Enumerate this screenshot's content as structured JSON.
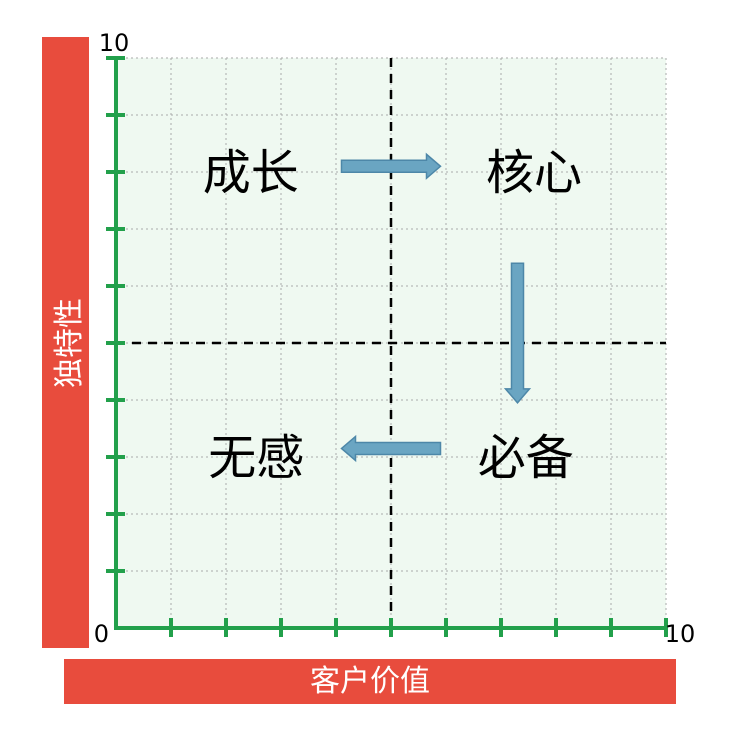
{
  "y_axis_label": "独特性",
  "x_axis_label": "客户价值",
  "colors": {
    "axis": "#22a04b",
    "label_bar": "#e84c3d",
    "plot_bg": "#eff9f1",
    "arrow_fill": "#6aa5c2",
    "arrow_stroke": "#4d87a8"
  },
  "axes": {
    "x_range": [
      0,
      10
    ],
    "y_range": [
      0,
      10
    ],
    "grid": true,
    "divider": [
      5,
      5
    ],
    "ticks": {
      "origin": "0",
      "x_max": "10",
      "y_max": "10"
    }
  },
  "quadrants": [
    {
      "label": "成长",
      "x": 2.45,
      "y": 8
    },
    {
      "label": "核心",
      "x": 7.6,
      "y": 8
    },
    {
      "label": "无感",
      "x": 2.55,
      "y": 3
    },
    {
      "label": "必备",
      "x": 7.45,
      "y": 3
    }
  ],
  "arrows": [
    {
      "name": "arrow-growth-to-core",
      "from": [
        4.1,
        8.1
      ],
      "to": [
        5.9,
        8.1
      ]
    },
    {
      "name": "arrow-core-to-essential",
      "from": [
        7.3,
        6.4
      ],
      "to": [
        7.3,
        3.95
      ]
    },
    {
      "name": "arrow-essential-to-indifferent",
      "from": [
        5.9,
        3.15
      ],
      "to": [
        4.1,
        3.15
      ]
    }
  ]
}
